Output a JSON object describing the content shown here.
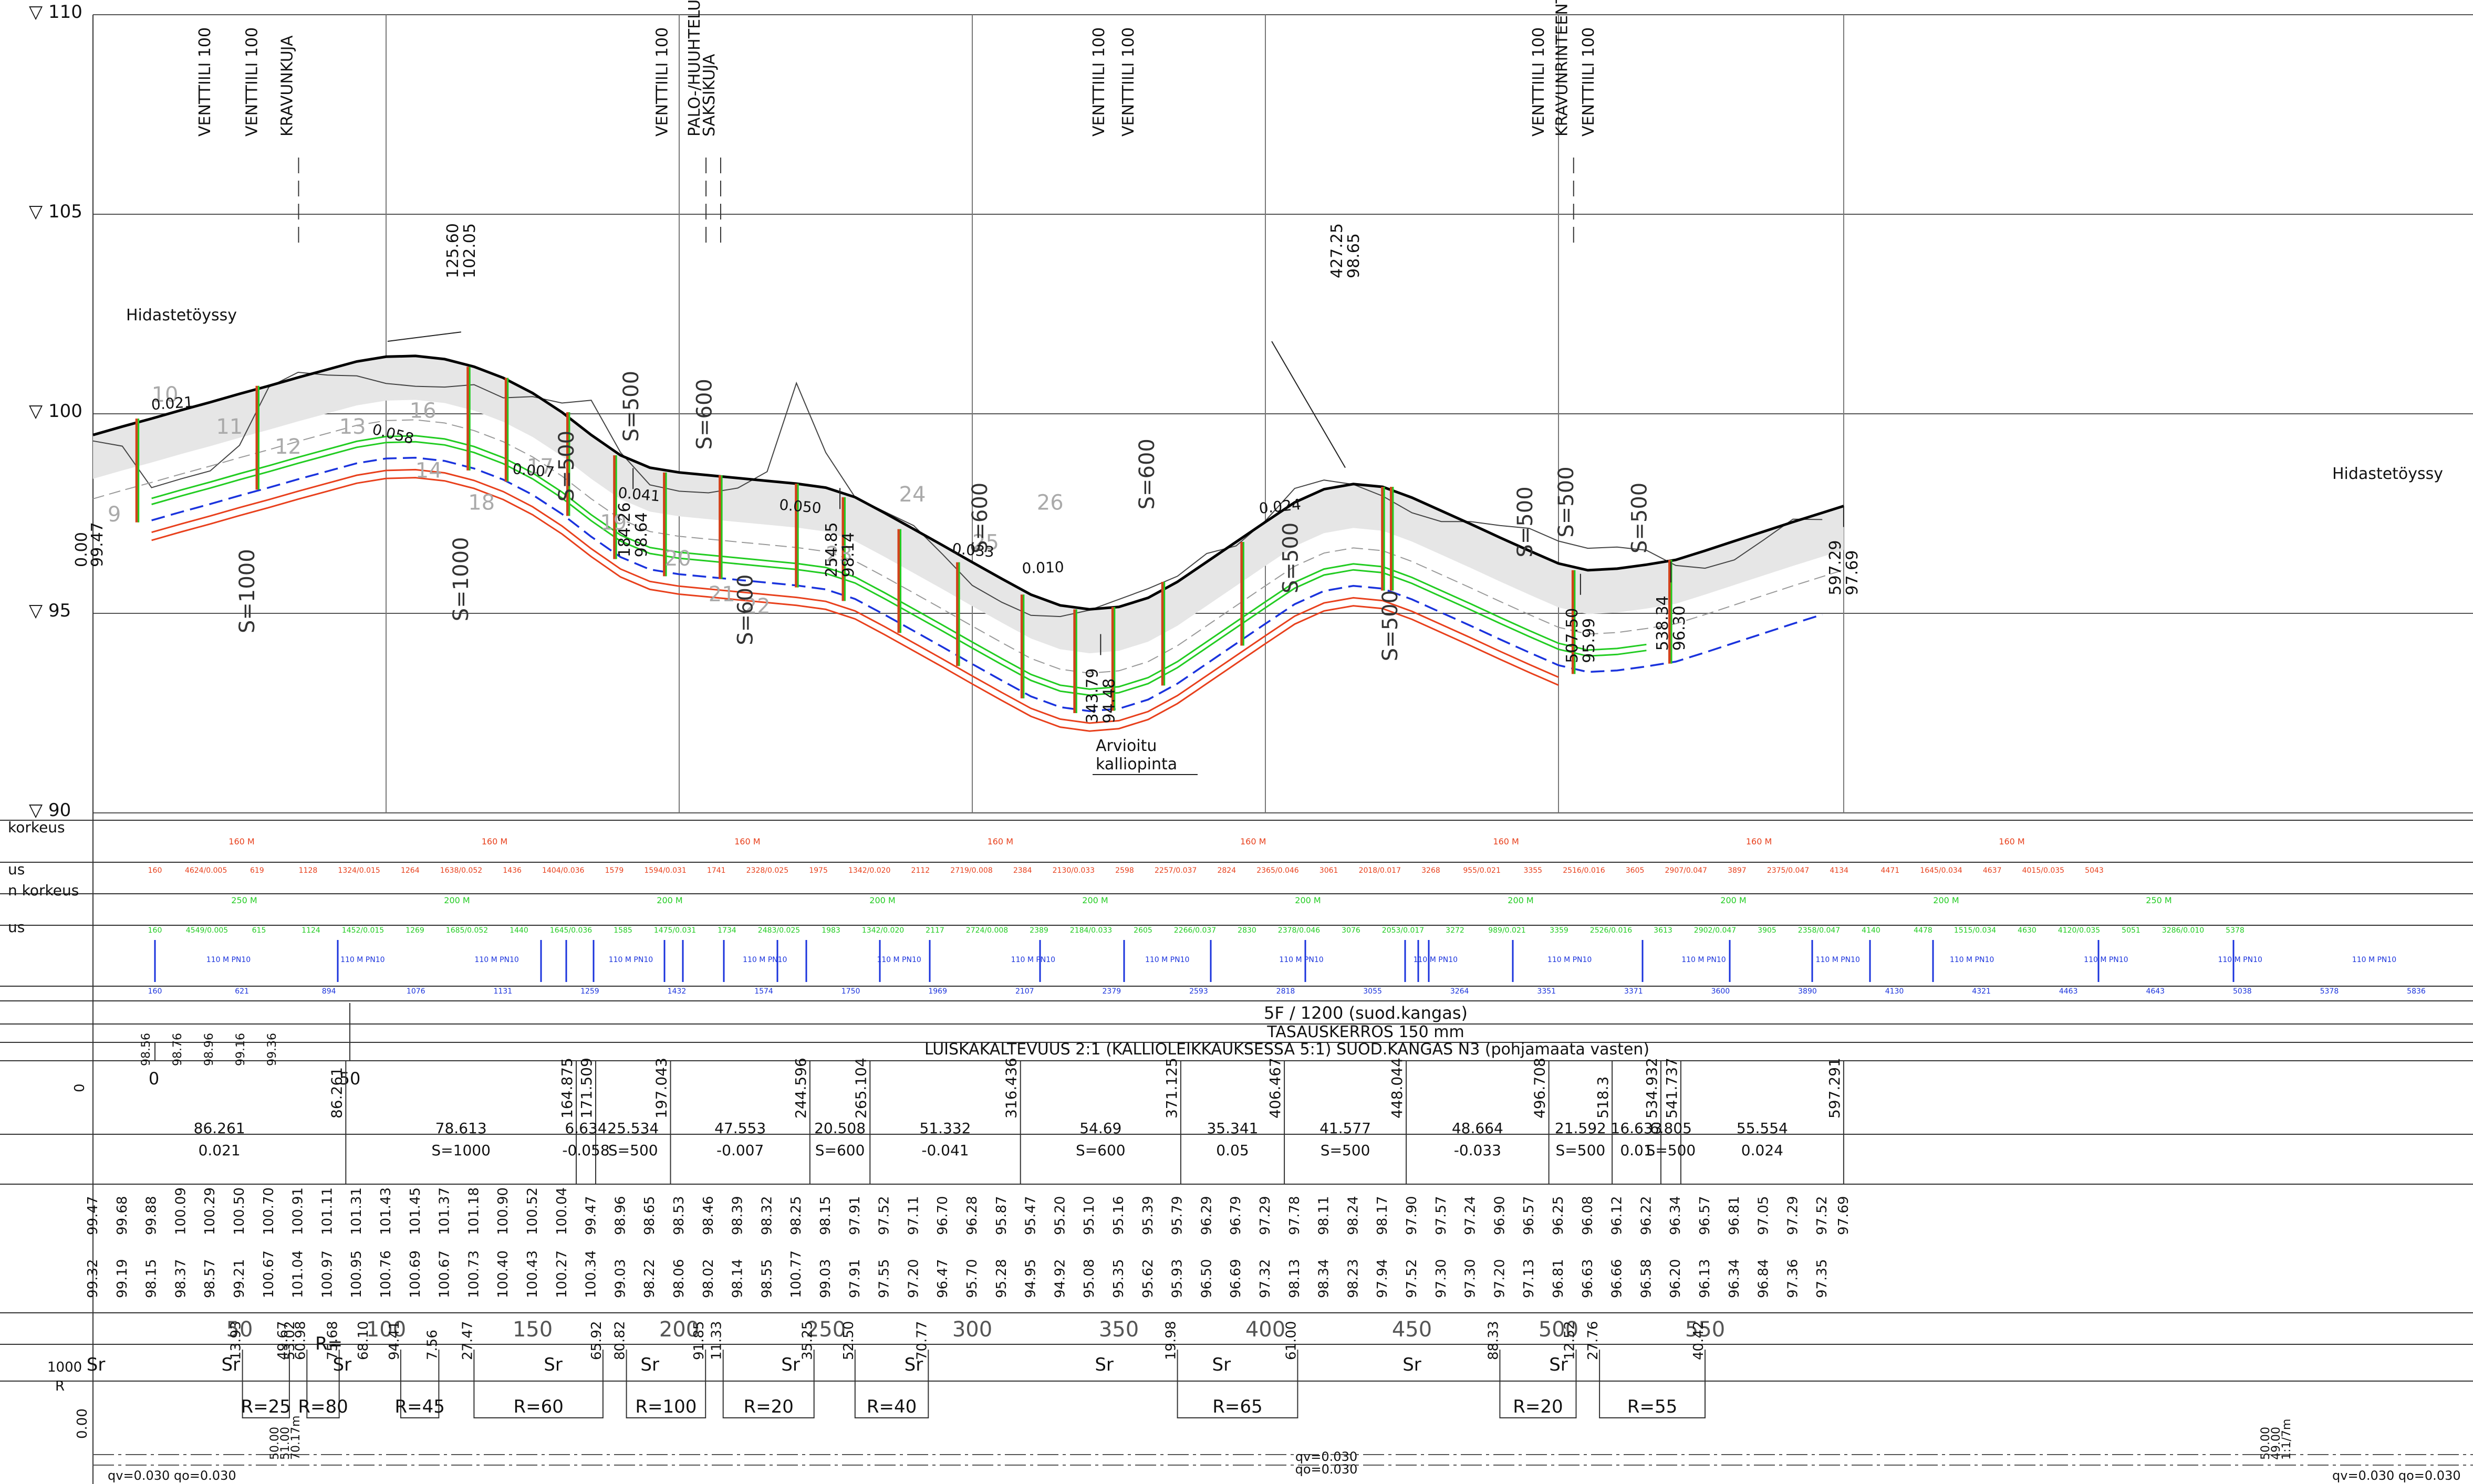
{
  "elevation_labels": [
    "▽ 110",
    "▽ 105",
    "▽ 100",
    "▽ 95",
    "▽ 90"
  ],
  "elevation_values": [
    110,
    105,
    100,
    95,
    90
  ],
  "top_annotations": [
    {
      "chainage": 40,
      "lines": [
        "VENTTIILI 100"
      ]
    },
    {
      "chainage": 56,
      "lines": [
        "VENTTIILI 100"
      ]
    },
    {
      "chainage": 68,
      "lines": [
        "KRAVUNKUJA"
      ]
    },
    {
      "chainage": 196,
      "lines": [
        "VENTTIILI 100"
      ]
    },
    {
      "chainage": 207,
      "lines": [
        "PALO-/HUUHTELUPOSTI"
      ]
    },
    {
      "chainage": 212,
      "lines": [
        "SAKSIKUJA"
      ]
    },
    {
      "chainage": 345,
      "lines": [
        "VENTTIILI 100"
      ]
    },
    {
      "chainage": 355,
      "lines": [
        "VENTTIILI 100"
      ]
    },
    {
      "chainage": 495,
      "lines": [
        "VENTTIILI 100"
      ]
    },
    {
      "chainage": 503,
      "lines": [
        "KRAVUNRINTEENTIE"
      ]
    },
    {
      "chainage": 512,
      "lines": [
        "VENTTIILI 100"
      ]
    }
  ],
  "profile_notes": [
    "Hidastetöyssy",
    "Hidastetöyssy",
    "Arvioitu\nkalliopinta"
  ],
  "grades_on_profile": [
    "0.021",
    "0.058",
    "0.007",
    "0.041",
    "0.050",
    "0.033",
    "0.010",
    "0.024"
  ],
  "vertical_curves": [
    "S=1000",
    "S=1000",
    "S=500",
    "S=500",
    "S=600",
    "S=600",
    "S=600",
    "S=600",
    "S=500",
    "S=500",
    "S=500",
    "S=500",
    "S=500"
  ],
  "high_low_points": [
    {
      "chainage": 125.6,
      "elev": "102.05",
      "label": "125.60"
    },
    {
      "chainage": 184.26,
      "elev": "98.64",
      "label": "184.26"
    },
    {
      "chainage": 254.85,
      "elev": "98.14",
      "label": "254.85"
    },
    {
      "chainage": 343.79,
      "elev": "94.48",
      "label": "343.79"
    },
    {
      "chainage": 427.25,
      "elev": "98.65",
      "label": "427.25"
    },
    {
      "chainage": 507.5,
      "elev": "95.99",
      "label": "507.50"
    },
    {
      "chainage": 538.34,
      "elev": "96.30",
      "label": "538.34"
    },
    {
      "chainage": 597.29,
      "elev": "97.69",
      "label": "597.29"
    }
  ],
  "start_point": {
    "label": "0.00",
    "elev": "99.47"
  },
  "manhole_numbers": [
    "9",
    "10",
    "11",
    "12",
    "13",
    "14",
    "16",
    "17",
    "18",
    "19",
    "20",
    "21",
    "22",
    "23",
    "24",
    "25",
    "26"
  ],
  "band_labels": [
    "korkeus",
    "us",
    "n korkeus",
    "us"
  ],
  "pipe_rows": {
    "orange_spans": [
      "160 M",
      "160 M",
      "160 M",
      "160 M",
      "160 M",
      "160 M",
      "160 M",
      "160 M"
    ],
    "orange_values": [
      "160",
      "4624/0.005",
      "619",
      "1128",
      "1324/0.015",
      "1264",
      "1638/0.052",
      "1436",
      "1404/0.036",
      "1579",
      "1594/0.031",
      "1741",
      "2328/0.025",
      "1975",
      "1342/0.020",
      "2112",
      "2719/0.008",
      "2384",
      "2130/0.033",
      "2598",
      "2257/0.037",
      "2824",
      "2365/0.046",
      "3061",
      "2018/0.017",
      "3268",
      "955/0.021",
      "3355",
      "2516/0.016",
      "3605",
      "2907/0.047",
      "3897",
      "2375/0.047",
      "4134",
      "4471",
      "1645/0.034",
      "4637",
      "4015/0.035",
      "5043"
    ],
    "green_spans": [
      "250 M",
      "200 M",
      "200 M",
      "200 M",
      "200 M",
      "200 M",
      "200 M",
      "200 M",
      "200 M",
      "250 M"
    ],
    "green_values": [
      "160",
      "4549/0.005",
      "615",
      "1124",
      "1452/0.015",
      "1269",
      "1685/0.052",
      "1440",
      "1645/0.036",
      "1585",
      "1475/0.031",
      "1734",
      "2483/0.025",
      "1983",
      "1342/0.020",
      "2117",
      "2724/0.008",
      "2389",
      "2184/0.033",
      "2605",
      "2266/0.037",
      "2830",
      "2378/0.046",
      "3076",
      "2053/0.017",
      "3272",
      "989/0.021",
      "3359",
      "2526/0.016",
      "3613",
      "2902/0.047",
      "3905",
      "2358/0.047",
      "4140",
      "4478",
      "1515/0.034",
      "4630",
      "4120/0.035",
      "5051",
      "3286/0.010",
      "5378"
    ],
    "blue_spans": [
      "110 M PN10",
      "110 M PN10",
      "110 M PN10",
      "110 M PN10",
      "110 M PN10",
      "110 M PN10",
      "110 M PN10",
      "110 M PN10",
      "110 M PN10",
      "110 M PN10",
      "110 M PN10",
      "110 M PN10",
      "110 M PN10",
      "110 M PN10",
      "110 M PN10",
      "110 M PN10",
      "110 M PN10"
    ],
    "blue_values": [
      "160",
      "621",
      "894",
      "1076",
      "1131",
      "1259",
      "1432",
      "1574",
      "1750",
      "1969",
      "2107",
      "2379",
      "2593",
      "2818",
      "3055",
      "3264",
      "3351",
      "3371",
      "3600",
      "3890",
      "4130",
      "4321",
      "4463",
      "4643",
      "5038",
      "5378",
      "5836"
    ]
  },
  "text_rows": [
    "5F  /  1200  (suod.kangas)",
    "TASAUSKERROS  150  mm",
    "LUISKAKALTEVUUS 2:1  (KALLIOLEIKKAUKSESSA 5:1)  SUOD.KANGAS  N3  (pohjamaata  vasten)"
  ],
  "small_scale": {
    "labels": [
      "98.56",
      "98.76",
      "98.96",
      "99.16",
      "99.36"
    ],
    "ticks": [
      "0",
      "50"
    ],
    "zero_label": "0"
  },
  "segments": [
    {
      "length": "86.261",
      "info": "0.021",
      "end": "86.261"
    },
    {
      "length": "78.613",
      "info": "S=1000",
      "end": "164.875"
    },
    {
      "length": "6.634",
      "info": "-0.058",
      "end": "171.509"
    },
    {
      "length": "25.534",
      "info": "S=500",
      "end": "197.043"
    },
    {
      "length": "47.553",
      "info": "-0.007",
      "end": "244.596"
    },
    {
      "length": "20.508",
      "info": "S=600",
      "end": "265.104"
    },
    {
      "length": "51.332",
      "info": "-0.041",
      "end": "316.436"
    },
    {
      "length": "54.69",
      "info": "S=600",
      "end": "371.125"
    },
    {
      "length": "35.341",
      "info": "0.05",
      "end": "406.467"
    },
    {
      "length": "41.577",
      "info": "S=500",
      "end": "448.044"
    },
    {
      "length": "48.664",
      "info": "-0.033",
      "end": "496.708"
    },
    {
      "length": "21.592",
      "info": "S=500",
      "end": "518.3"
    },
    {
      "length": "16.633",
      "info": "0.01",
      "end": "534.932"
    },
    {
      "length": "6.805",
      "info": "S=500",
      "end": "541.737"
    },
    {
      "length": "55.554",
      "info": "0.024",
      "end": "597.291"
    }
  ],
  "design_elevations": [
    "99.47",
    "99.68",
    "99.88",
    "100.09",
    "100.29",
    "100.50",
    "100.70",
    "100.91",
    "101.11",
    "101.31",
    "101.43",
    "101.45",
    "101.37",
    "101.18",
    "100.90",
    "100.52",
    "100.04",
    "99.47",
    "98.96",
    "98.65",
    "98.53",
    "98.46",
    "98.39",
    "98.32",
    "98.25",
    "98.15",
    "97.91",
    "97.52",
    "97.11",
    "96.70",
    "96.28",
    "95.87",
    "95.47",
    "95.20",
    "95.10",
    "95.16",
    "95.39",
    "95.79",
    "96.29",
    "96.79",
    "97.29",
    "97.78",
    "98.11",
    "98.24",
    "98.17",
    "97.90",
    "97.57",
    "97.24",
    "96.90",
    "96.57",
    "96.25",
    "96.08",
    "96.12",
    "96.22",
    "96.34",
    "96.57",
    "96.81",
    "97.05",
    "97.29",
    "97.52",
    "97.69"
  ],
  "existing_elevations": [
    "99.32",
    "99.19",
    "98.15",
    "98.37",
    "98.57",
    "99.21",
    "100.67",
    "101.04",
    "100.97",
    "100.95",
    "100.76",
    "100.69",
    "100.67",
    "100.73",
    "100.40",
    "100.43",
    "100.27",
    "100.34",
    "99.03",
    "98.22",
    "98.06",
    "98.02",
    "98.14",
    "98.55",
    "100.77",
    "99.03",
    "97.91",
    "97.55",
    "97.20",
    "96.47",
    "95.70",
    "95.28",
    "94.95",
    "94.92",
    "95.08",
    "95.35",
    "95.62",
    "95.93",
    "96.50",
    "96.69",
    "97.32",
    "98.13",
    "98.34",
    "98.23",
    "97.94",
    "97.52",
    "97.30",
    "97.30",
    "97.20",
    "97.13",
    "96.81",
    "96.63",
    "96.66",
    "96.58",
    "96.20",
    "96.13",
    "96.34",
    "96.84",
    "97.36",
    "97.35"
  ],
  "chainage_labels": [
    "50",
    "100",
    "150",
    "200",
    "250",
    "300",
    "350",
    "400",
    "450",
    "500",
    "550"
  ],
  "chainage_values": [
    50,
    100,
    150,
    200,
    250,
    300,
    350,
    400,
    450,
    500,
    550
  ],
  "curve_markers": [
    {
      "start": "13.93",
      "end": "49.67",
      "label": "R=25"
    },
    {
      "start": "60.98",
      "end": "75.68",
      "label": "R=80"
    },
    {
      "start": "94.41",
      "end": "7.56",
      "label": "R=45"
    },
    {
      "start": "27.47",
      "end": "65.92",
      "label": "R=60"
    },
    {
      "start": "80.82",
      "end": "91.85",
      "label": "R=100"
    },
    {
      "start": "11.33",
      "end": "35.25",
      "label": "R=20"
    },
    {
      "start": "52.50",
      "end": "70.77",
      "label": "R=40"
    },
    {
      "start": "19.98",
      "end": "61.00",
      "label": "R=65"
    },
    {
      "start": "88.33",
      "end": "12.52",
      "label": "R=20"
    },
    {
      "start": "27.76",
      "end": "40.42",
      "label": "R=55"
    }
  ],
  "straight_label": "Sr",
  "early_curve": {
    "label": "R=",
    "values": [
      "53.02",
      "68.10"
    ]
  },
  "bottom_labels": {
    "scale": "1000",
    "r": "R",
    "zero": "0.00",
    "qv1": "qv=0.030  qo=0.030",
    "qv_mid": "qv=0.030",
    "qo_mid": "qo=0.030",
    "qv2": "qv=0.030  qo=0.030",
    "left_vals": [
      "50.00",
      "51.00",
      "70.17m"
    ],
    "right_vals": [
      "50.00",
      "49.00",
      "1:1/7m"
    ]
  }
}
